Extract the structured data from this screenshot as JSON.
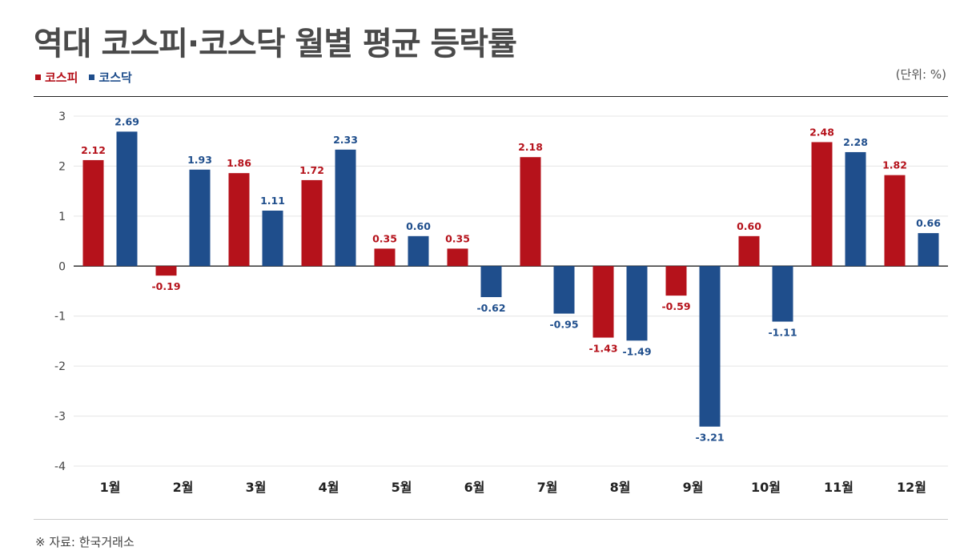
{
  "header": {
    "title": "역대 코스피·코스닥 월별 평균 등락률",
    "unit": "(단위: %)"
  },
  "footer": {
    "source": "※ 자료: 한국거래소"
  },
  "colors": {
    "kospi": "#b5121b",
    "kosdaq": "#1f4e8c"
  },
  "chart_data": {
    "type": "bar",
    "title": "역대 코스피·코스닥 월별 평균 등락률",
    "xlabel": "",
    "ylabel": "",
    "unit": "%",
    "categories": [
      "1월",
      "2월",
      "3월",
      "4월",
      "5월",
      "6월",
      "7월",
      "8월",
      "9월",
      "10월",
      "11월",
      "12월"
    ],
    "series": [
      {
        "name": "코스피",
        "color": "#b5121b",
        "values": [
          2.12,
          -0.19,
          1.86,
          1.72,
          0.35,
          0.35,
          2.18,
          -1.43,
          -0.59,
          0.6,
          2.48,
          1.82
        ]
      },
      {
        "name": "코스닥",
        "color": "#1f4e8c",
        "values": [
          2.69,
          1.93,
          1.11,
          2.33,
          0.6,
          -0.62,
          -0.95,
          -1.49,
          -3.21,
          -1.11,
          2.28,
          0.66
        ]
      }
    ],
    "ylim": [
      -4,
      3
    ],
    "yticks": [
      3,
      2,
      1,
      0,
      -1,
      -2,
      -3,
      -4
    ],
    "grid": true,
    "legend_position": "top-left",
    "data_labels": true
  }
}
